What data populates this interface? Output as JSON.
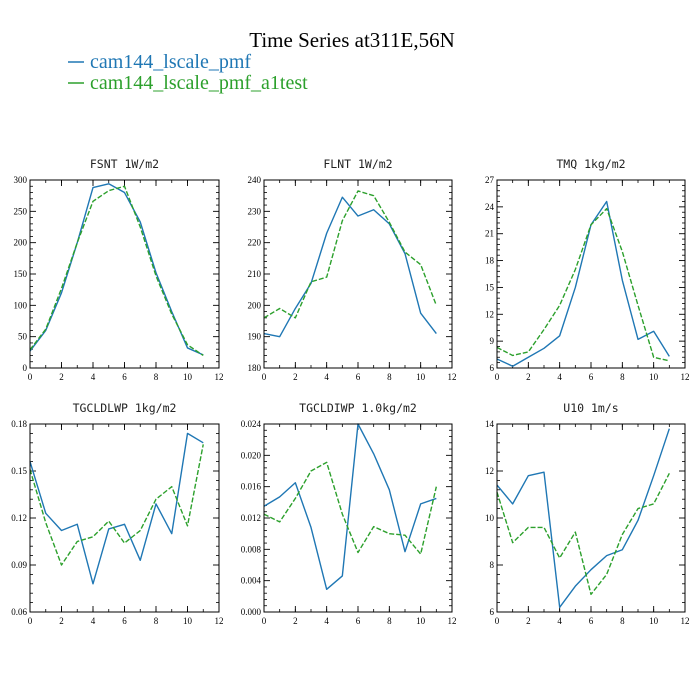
{
  "figure": {
    "title": "Time Series at311E,56N",
    "legend": [
      {
        "label": "cam144_lscale_pmf",
        "color": "#1f77b4",
        "dash": "solid"
      },
      {
        "label": "cam144_lscale_pmf_a1test",
        "color": "#2ca02c",
        "dash": "dashed"
      }
    ]
  },
  "chart_data": [
    {
      "type": "line",
      "title": "FSNT   1W/m2",
      "xlim": [
        0,
        12
      ],
      "xticks": [
        0,
        2,
        4,
        6,
        8,
        10,
        12
      ],
      "ylim": [
        0,
        300
      ],
      "yticks": [
        0,
        50,
        100,
        150,
        200,
        250,
        300
      ],
      "yticklabels": [
        "0",
        "50",
        "100",
        "150",
        "200",
        "250",
        "300"
      ],
      "x": [
        0,
        1,
        2,
        3,
        4,
        5,
        6,
        7,
        8,
        9,
        10,
        11
      ],
      "series": [
        {
          "name": "cam144_lscale_pmf",
          "values": [
            27,
            60,
            120,
            200,
            288,
            294,
            280,
            233,
            152,
            90,
            32,
            21
          ]
        },
        {
          "name": "cam144_lscale_pmf_a1test",
          "values": [
            29,
            62,
            127,
            200,
            266,
            283,
            290,
            225,
            147,
            86,
            37,
            20
          ]
        }
      ]
    },
    {
      "type": "line",
      "title": "FLNT   1W/m2",
      "xlim": [
        0,
        12
      ],
      "xticks": [
        0,
        2,
        4,
        6,
        8,
        10,
        12
      ],
      "ylim": [
        180,
        240
      ],
      "yticks": [
        180,
        190,
        200,
        210,
        220,
        230,
        240
      ],
      "yticklabels": [
        "180",
        "190",
        "200",
        "210",
        "220",
        "230",
        "240"
      ],
      "x": [
        0,
        1,
        2,
        3,
        4,
        5,
        6,
        7,
        8,
        9,
        10,
        11
      ],
      "series": [
        {
          "name": "cam144_lscale_pmf",
          "values": [
            191,
            190,
            199,
            207,
            223,
            234.5,
            228.5,
            230.5,
            226,
            216.5,
            197.5,
            191
          ]
        },
        {
          "name": "cam144_lscale_pmf_a1test",
          "values": [
            196,
            199,
            196,
            207.5,
            209,
            227,
            236.5,
            235,
            226.5,
            217,
            213,
            200
          ]
        }
      ]
    },
    {
      "type": "line",
      "title": "TMQ   1kg/m2",
      "xlim": [
        0,
        12
      ],
      "xticks": [
        0,
        2,
        4,
        6,
        8,
        10,
        12
      ],
      "ylim": [
        6,
        27
      ],
      "yticks": [
        6,
        9,
        12,
        15,
        18,
        21,
        24,
        27
      ],
      "yticklabels": [
        "6",
        "9",
        "12",
        "15",
        "18",
        "21",
        "24",
        "27"
      ],
      "x": [
        0,
        1,
        2,
        3,
        4,
        5,
        6,
        7,
        8,
        9,
        10,
        11
      ],
      "series": [
        {
          "name": "cam144_lscale_pmf",
          "values": [
            7,
            6.2,
            7.2,
            8.2,
            9.6,
            15,
            22,
            24.6,
            15.8,
            9.2,
            10.1,
            7.3
          ]
        },
        {
          "name": "cam144_lscale_pmf_a1test",
          "values": [
            8.3,
            7.4,
            7.8,
            10.3,
            13,
            17,
            22,
            23.8,
            19,
            13,
            7.2,
            6.8
          ]
        }
      ]
    },
    {
      "type": "line",
      "title": "TGCLDLWP   1kg/m2",
      "xlim": [
        0,
        12
      ],
      "xticks": [
        0,
        2,
        4,
        6,
        8,
        10,
        12
      ],
      "ylim": [
        0.06,
        0.18
      ],
      "yticks": [
        0.06,
        0.09,
        0.12,
        0.15,
        0.18
      ],
      "yticklabels": [
        "0.06",
        "0.09",
        "0.12",
        "0.15",
        "0.18"
      ],
      "x": [
        0,
        1,
        2,
        3,
        4,
        5,
        6,
        7,
        8,
        9,
        10,
        11
      ],
      "series": [
        {
          "name": "cam144_lscale_pmf",
          "values": [
            0.156,
            0.123,
            0.112,
            0.116,
            0.078,
            0.113,
            0.116,
            0.093,
            0.129,
            0.11,
            0.174,
            0.168
          ]
        },
        {
          "name": "cam144_lscale_pmf_a1test",
          "values": [
            0.151,
            0.117,
            0.09,
            0.105,
            0.108,
            0.118,
            0.104,
            0.112,
            0.132,
            0.14,
            0.115,
            0.167
          ]
        }
      ]
    },
    {
      "type": "line",
      "title": "TGCLDIWP   1.0kg/m2",
      "xlim": [
        0,
        12
      ],
      "xticks": [
        0,
        2,
        4,
        6,
        8,
        10,
        12
      ],
      "ylim": [
        0,
        0.024
      ],
      "yticks": [
        0,
        0.004,
        0.008,
        0.012,
        0.016,
        0.02,
        0.024
      ],
      "yticklabels": [
        "0.000",
        "0.004",
        "0.008",
        "0.012",
        "0.016",
        "0.020",
        "0.024"
      ],
      "x": [
        0,
        1,
        2,
        3,
        4,
        5,
        6,
        7,
        8,
        9,
        10,
        11
      ],
      "series": [
        {
          "name": "cam144_lscale_pmf",
          "values": [
            0.0135,
            0.0147,
            0.0165,
            0.0108,
            0.0029,
            0.0046,
            0.024,
            0.0202,
            0.0156,
            0.0077,
            0.0138,
            0.0145
          ]
        },
        {
          "name": "cam144_lscale_pmf_a1test",
          "values": [
            0.0125,
            0.0115,
            0.0145,
            0.018,
            0.0191,
            0.0125,
            0.0076,
            0.0109,
            0.01,
            0.0098,
            0.0074,
            0.016
          ]
        }
      ]
    },
    {
      "type": "line",
      "title": "U10   1m/s",
      "xlim": [
        0,
        12
      ],
      "xticks": [
        0,
        2,
        4,
        6,
        8,
        10,
        12
      ],
      "ylim": [
        6,
        14
      ],
      "yticks": [
        6,
        8,
        10,
        12,
        14
      ],
      "yticklabels": [
        "6",
        "8",
        "10",
        "12",
        "14"
      ],
      "x": [
        0,
        1,
        2,
        3,
        4,
        5,
        6,
        7,
        8,
        9,
        10,
        11
      ],
      "series": [
        {
          "name": "cam144_lscale_pmf",
          "values": [
            11.4,
            10.6,
            11.8,
            11.95,
            6.2,
            7.1,
            7.8,
            8.4,
            8.65,
            9.9,
            11.8,
            13.8
          ]
        },
        {
          "name": "cam144_lscale_pmf_a1test",
          "values": [
            11.1,
            8.95,
            9.6,
            9.6,
            8.3,
            9.4,
            6.75,
            7.6,
            9.3,
            10.4,
            10.6,
            11.9
          ]
        }
      ]
    }
  ]
}
